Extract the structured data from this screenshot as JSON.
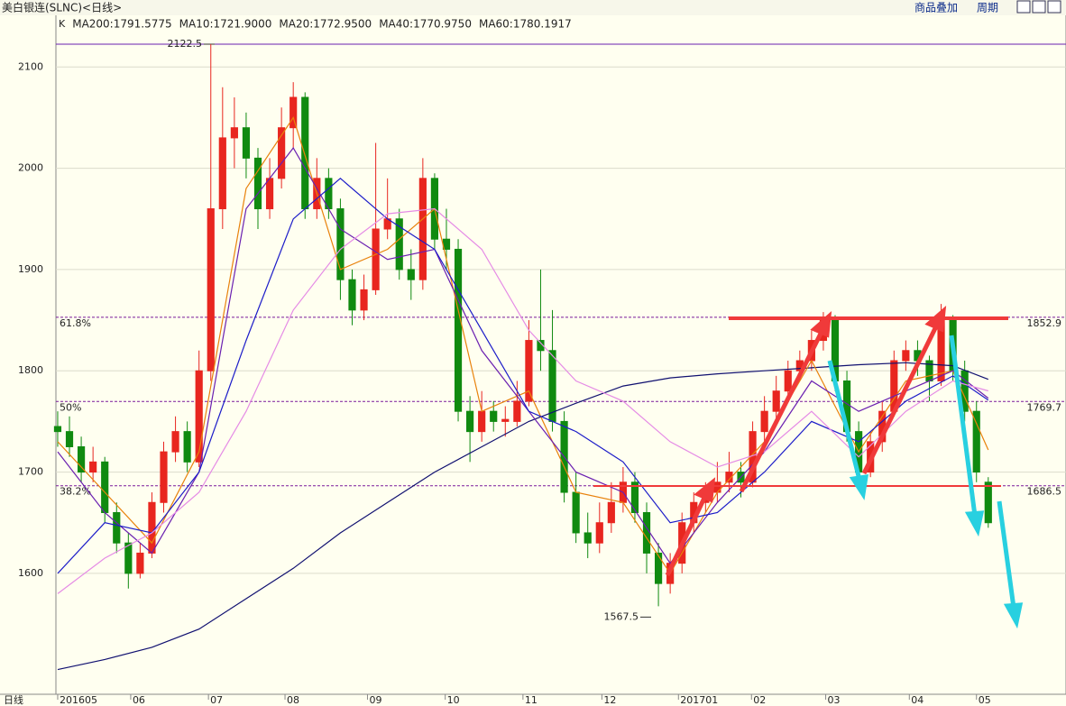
{
  "header": {
    "title": "美白银连(SLNC)<日线>",
    "buttons": [
      "商品叠加",
      "周期"
    ]
  },
  "chart_data": {
    "type": "candlestick",
    "legend_prefix": "K",
    "period_label": "日线",
    "up_color": "#e8261f",
    "down_color": "#108a10",
    "ylim": [
      1480.6,
      2151
    ],
    "yticks": [
      1600,
      1700,
      1800,
      1900,
      2000,
      2100
    ],
    "xlim": [
      -0.15,
      85.6
    ],
    "xticks": [
      {
        "value": 0,
        "label": "201605"
      },
      {
        "value": 6.2,
        "label": "06"
      },
      {
        "value": 12.8,
        "label": "07"
      },
      {
        "value": 19.3,
        "label": "08"
      },
      {
        "value": 26.3,
        "label": "09"
      },
      {
        "value": 32.9,
        "label": "10"
      },
      {
        "value": 39.5,
        "label": "11"
      },
      {
        "value": 46.2,
        "label": "12"
      },
      {
        "value": 52.7,
        "label": "201701"
      },
      {
        "value": 58.9,
        "label": "02"
      },
      {
        "value": 65.2,
        "label": "03"
      },
      {
        "value": 72.3,
        "label": "04"
      },
      {
        "value": 78.0,
        "label": "05"
      }
    ],
    "grid": true,
    "candles": [
      [
        1745,
        1760,
        1725,
        1740
      ],
      [
        1740,
        1755,
        1715,
        1725
      ],
      [
        1725,
        1735,
        1690,
        1700
      ],
      [
        1700,
        1725,
        1690,
        1710
      ],
      [
        1710,
        1715,
        1650,
        1660
      ],
      [
        1660,
        1670,
        1620,
        1630
      ],
      [
        1630,
        1640,
        1585,
        1600
      ],
      [
        1600,
        1630,
        1595,
        1620
      ],
      [
        1620,
        1680,
        1615,
        1670
      ],
      [
        1670,
        1730,
        1660,
        1720
      ],
      [
        1720,
        1755,
        1710,
        1740
      ],
      [
        1740,
        1750,
        1700,
        1710
      ],
      [
        1710,
        1820,
        1705,
        1800
      ],
      [
        1800,
        2122.5,
        1790,
        1960
      ],
      [
        1960,
        2080,
        1940,
        2030
      ],
      [
        2030,
        2070,
        2000,
        2040
      ],
      [
        2040,
        2055,
        1990,
        2010
      ],
      [
        2010,
        2020,
        1940,
        1960
      ],
      [
        1960,
        2010,
        1950,
        1990
      ],
      [
        1990,
        2060,
        1980,
        2040
      ],
      [
        2040,
        2085,
        2020,
        2070
      ],
      [
        2070,
        2075,
        1950,
        1960
      ],
      [
        1960,
        2010,
        1950,
        1990
      ],
      [
        1990,
        2000,
        1950,
        1960
      ],
      [
        1960,
        1970,
        1870,
        1890
      ],
      [
        1890,
        1900,
        1845,
        1860
      ],
      [
        1860,
        1895,
        1850,
        1880
      ],
      [
        1880,
        2025,
        1875,
        1940
      ],
      [
        1940,
        1990,
        1930,
        1950
      ],
      [
        1950,
        1960,
        1890,
        1900
      ],
      [
        1900,
        1920,
        1870,
        1890
      ],
      [
        1890,
        2010,
        1880,
        1990
      ],
      [
        1990,
        1995,
        1920,
        1930
      ],
      [
        1930,
        1960,
        1900,
        1920
      ],
      [
        1920,
        1930,
        1750,
        1760
      ],
      [
        1760,
        1775,
        1710,
        1740
      ],
      [
        1740,
        1780,
        1730,
        1760
      ],
      [
        1760,
        1770,
        1740,
        1750
      ],
      [
        1750,
        1765,
        1735,
        1752
      ],
      [
        1750,
        1790,
        1745,
        1770
      ],
      [
        1770,
        1850,
        1765,
        1830
      ],
      [
        1830,
        1900,
        1800,
        1820
      ],
      [
        1820,
        1860,
        1740,
        1750
      ],
      [
        1750,
        1760,
        1670,
        1680
      ],
      [
        1680,
        1700,
        1630,
        1640
      ],
      [
        1640,
        1660,
        1615,
        1630
      ],
      [
        1630,
        1670,
        1620,
        1650
      ],
      [
        1650,
        1690,
        1640,
        1670
      ],
      [
        1670,
        1705,
        1660,
        1690
      ],
      [
        1690,
        1700,
        1650,
        1660
      ],
      [
        1660,
        1670,
        1600,
        1620
      ],
      [
        1620,
        1630,
        1567.5,
        1590
      ],
      [
        1590,
        1620,
        1580,
        1610
      ],
      [
        1610,
        1660,
        1600,
        1650
      ],
      [
        1650,
        1680,
        1640,
        1670
      ],
      [
        1670,
        1690,
        1660,
        1680
      ],
      [
        1680,
        1710,
        1670,
        1690
      ],
      [
        1690,
        1720,
        1680,
        1700
      ],
      [
        1700,
        1710,
        1675,
        1690
      ],
      [
        1690,
        1750,
        1685,
        1740
      ],
      [
        1740,
        1775,
        1730,
        1760
      ],
      [
        1760,
        1795,
        1750,
        1780
      ],
      [
        1780,
        1810,
        1770,
        1800
      ],
      [
        1800,
        1820,
        1790,
        1810
      ],
      [
        1810,
        1840,
        1800,
        1830
      ],
      [
        1830,
        1858,
        1820,
        1850
      ],
      [
        1850,
        1855,
        1780,
        1790
      ],
      [
        1790,
        1800,
        1730,
        1740
      ],
      [
        1740,
        1750,
        1695,
        1700
      ],
      [
        1700,
        1740,
        1695,
        1730
      ],
      [
        1730,
        1770,
        1720,
        1760
      ],
      [
        1760,
        1820,
        1755,
        1810
      ],
      [
        1810,
        1830,
        1800,
        1820
      ],
      [
        1820,
        1830,
        1795,
        1810
      ],
      [
        1810,
        1815,
        1770,
        1790
      ],
      [
        1790,
        1866,
        1785,
        1850
      ],
      [
        1850,
        1855,
        1790,
        1800
      ],
      [
        1800,
        1810,
        1750,
        1760
      ],
      [
        1760,
        1770,
        1690,
        1700
      ],
      [
        1690,
        1695,
        1645,
        1650
      ]
    ],
    "ma_x": [
      0,
      4,
      8,
      12,
      16,
      20,
      24,
      28,
      32,
      36,
      40,
      44,
      48,
      52,
      56,
      60,
      64,
      68,
      72,
      76,
      79
    ],
    "series": [
      {
        "name": "MA200:1791.5775",
        "color": "#101070",
        "values": [
          1505,
          1515,
          1527,
          1545,
          1575,
          1605,
          1640,
          1670,
          1700,
          1725,
          1750,
          1768,
          1785,
          1793,
          1797,
          1800,
          1803,
          1806,
          1808,
          1805,
          1791.5775
        ]
      },
      {
        "name": "MA10:1721.9000",
        "color": "#e8820c",
        "values": [
          1730,
          1680,
          1630,
          1720,
          1980,
          2050,
          1900,
          1920,
          1960,
          1760,
          1780,
          1680,
          1670,
          1600,
          1680,
          1730,
          1810,
          1720,
          1790,
          1800,
          1721.9
        ]
      },
      {
        "name": "MA20:1772.9500",
        "color": "#6a1fb0",
        "values": [
          1720,
          1660,
          1620,
          1700,
          1960,
          2020,
          1940,
          1910,
          1920,
          1820,
          1760,
          1700,
          1680,
          1610,
          1670,
          1720,
          1790,
          1760,
          1780,
          1800,
          1772.95
        ]
      },
      {
        "name": "MA40:1770.9750",
        "color": "#1c1cc8",
        "values": [
          1600,
          1650,
          1640,
          1700,
          1830,
          1950,
          1990,
          1950,
          1920,
          1840,
          1760,
          1740,
          1710,
          1650,
          1660,
          1700,
          1750,
          1730,
          1770,
          1795,
          1770.975
        ]
      },
      {
        "name": "MA60:1780.1917",
        "color": "#e58be5",
        "values": [
          1580,
          1615,
          1640,
          1680,
          1760,
          1860,
          1920,
          1955,
          1960,
          1920,
          1840,
          1790,
          1770,
          1730,
          1705,
          1720,
          1760,
          1715,
          1760,
          1790,
          1780.1917
        ]
      }
    ],
    "levels": [
      {
        "value": 1852.9,
        "label": "61.8%"
      },
      {
        "value": 1769.7,
        "label": "50%"
      },
      {
        "value": 1686.5,
        "label": "38.2%"
      }
    ],
    "level_color": "#7a1a9a",
    "high_line": 2122.5,
    "low_mark": 1567.5
  }
}
